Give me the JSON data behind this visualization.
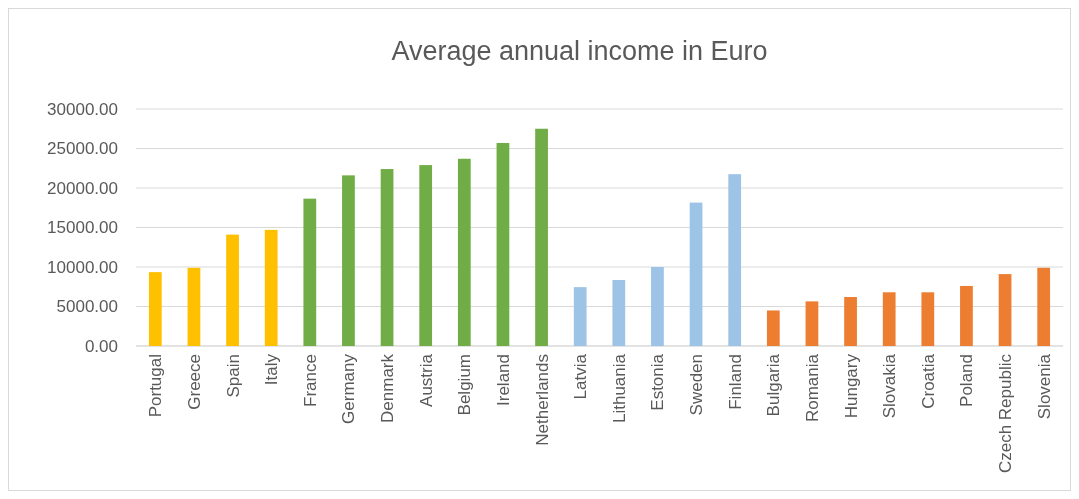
{
  "chart_data": {
    "type": "bar",
    "title": "Average annual income in Euro",
    "categories": [
      "Portugal",
      "Greece",
      "Spain",
      "Italy",
      "France",
      "Germany",
      "Denmark",
      "Austria",
      "Belgium",
      "Ireland",
      "Netherlands",
      "Latvia",
      "Lithuania",
      "Estonia",
      "Sweden",
      "Finland",
      "Bulgaria",
      "Romania",
      "Hungary",
      "Slovakia",
      "Croatia",
      "Poland",
      "Czech Republic",
      "Slovenia"
    ],
    "values": [
      9350,
      9900,
      14100,
      14700,
      18650,
      21600,
      22400,
      22900,
      23700,
      25700,
      27500,
      7450,
      8350,
      10000,
      18150,
      21750,
      4500,
      5650,
      6200,
      6800,
      6800,
      7600,
      9100,
      9900
    ],
    "colors": [
      "#ffc000",
      "#ffc000",
      "#ffc000",
      "#ffc000",
      "#70ad47",
      "#70ad47",
      "#70ad47",
      "#70ad47",
      "#70ad47",
      "#70ad47",
      "#70ad47",
      "#9dc3e6",
      "#9dc3e6",
      "#9dc3e6",
      "#9dc3e6",
      "#9dc3e6",
      "#ed7d31",
      "#ed7d31",
      "#ed7d31",
      "#ed7d31",
      "#ed7d31",
      "#ed7d31",
      "#ed7d31",
      "#ed7d31"
    ],
    "ylim": [
      0,
      30000
    ],
    "yticks": [
      {
        "value": 0,
        "label": "0.00"
      },
      {
        "value": 5000,
        "label": "5000.00"
      },
      {
        "value": 10000,
        "label": "10000.00"
      },
      {
        "value": 15000,
        "label": "15000.00"
      },
      {
        "value": 20000,
        "label": "20000.00"
      },
      {
        "value": 25000,
        "label": "25000.00"
      },
      {
        "value": 30000,
        "label": "30000.00"
      }
    ],
    "grid": "y"
  }
}
